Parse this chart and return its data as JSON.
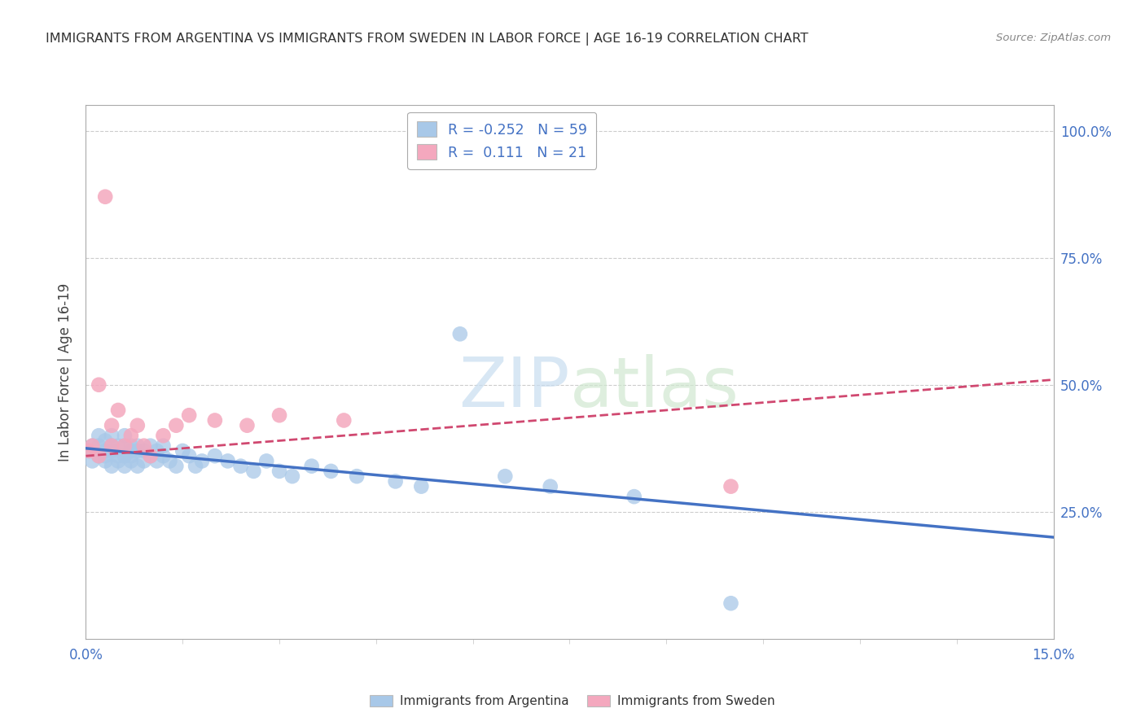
{
  "title": "IMMIGRANTS FROM ARGENTINA VS IMMIGRANTS FROM SWEDEN IN LABOR FORCE | AGE 16-19 CORRELATION CHART",
  "source": "Source: ZipAtlas.com",
  "ylabel": "In Labor Force | Age 16-19",
  "xlim": [
    0.0,
    0.15
  ],
  "ylim": [
    0.0,
    1.05
  ],
  "argentina_color": "#a8c8e8",
  "sweden_color": "#f4a8be",
  "argentina_line_color": "#4472c4",
  "sweden_line_color": "#d04870",
  "r_argentina": -0.252,
  "n_argentina": 59,
  "r_sweden": 0.111,
  "n_sweden": 21,
  "yticks": [
    0.25,
    0.5,
    0.75,
    1.0
  ],
  "ytick_labels": [
    "25.0%",
    "50.0%",
    "75.0%",
    "100.0%"
  ],
  "xtick_left": "0.0%",
  "xtick_right": "15.0%",
  "argentina_x": [
    0.0005,
    0.001,
    0.001,
    0.002,
    0.002,
    0.002,
    0.003,
    0.003,
    0.003,
    0.003,
    0.004,
    0.004,
    0.004,
    0.004,
    0.005,
    0.005,
    0.005,
    0.006,
    0.006,
    0.006,
    0.006,
    0.007,
    0.007,
    0.007,
    0.007,
    0.008,
    0.008,
    0.008,
    0.009,
    0.009,
    0.01,
    0.01,
    0.011,
    0.011,
    0.012,
    0.012,
    0.013,
    0.014,
    0.015,
    0.016,
    0.017,
    0.018,
    0.02,
    0.022,
    0.024,
    0.026,
    0.028,
    0.03,
    0.032,
    0.035,
    0.038,
    0.042,
    0.048,
    0.052,
    0.058,
    0.065,
    0.072,
    0.085,
    0.1
  ],
  "argentina_y": [
    0.37,
    0.38,
    0.35,
    0.36,
    0.38,
    0.4,
    0.35,
    0.37,
    0.39,
    0.36,
    0.34,
    0.37,
    0.38,
    0.4,
    0.35,
    0.36,
    0.38,
    0.34,
    0.36,
    0.38,
    0.4,
    0.35,
    0.37,
    0.38,
    0.36,
    0.34,
    0.37,
    0.38,
    0.35,
    0.37,
    0.36,
    0.38,
    0.35,
    0.37,
    0.36,
    0.38,
    0.35,
    0.34,
    0.37,
    0.36,
    0.34,
    0.35,
    0.36,
    0.35,
    0.34,
    0.33,
    0.35,
    0.33,
    0.32,
    0.34,
    0.33,
    0.32,
    0.31,
    0.3,
    0.6,
    0.32,
    0.3,
    0.28,
    0.07
  ],
  "sweden_x": [
    0.0005,
    0.001,
    0.002,
    0.002,
    0.003,
    0.004,
    0.004,
    0.005,
    0.006,
    0.007,
    0.008,
    0.009,
    0.01,
    0.012,
    0.014,
    0.016,
    0.02,
    0.025,
    0.03,
    0.04,
    0.1
  ],
  "sweden_y": [
    0.37,
    0.38,
    0.36,
    0.5,
    0.87,
    0.38,
    0.42,
    0.45,
    0.38,
    0.4,
    0.42,
    0.38,
    0.36,
    0.4,
    0.42,
    0.44,
    0.43,
    0.42,
    0.44,
    0.43,
    0.3
  ],
  "arg_line_x0": 0.0,
  "arg_line_y0": 0.375,
  "arg_line_x1": 0.15,
  "arg_line_y1": 0.2,
  "swe_line_x0": 0.0,
  "swe_line_y0": 0.36,
  "swe_line_x1": 0.15,
  "swe_line_y1": 0.51
}
